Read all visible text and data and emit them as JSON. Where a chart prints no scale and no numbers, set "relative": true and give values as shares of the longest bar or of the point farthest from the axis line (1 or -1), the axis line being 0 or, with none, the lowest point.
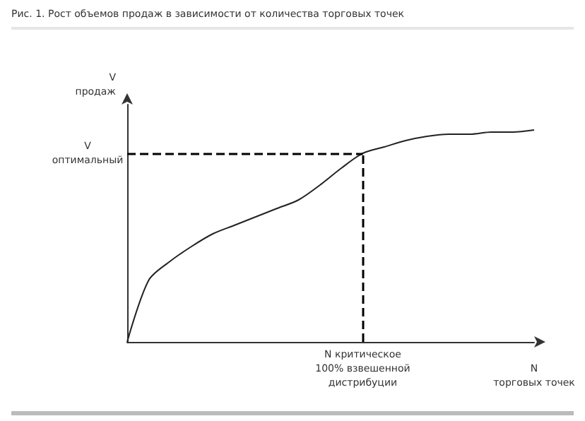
{
  "chart_data": {
    "type": "line",
    "title": "Рис. 1. Рост объемов продаж в зависимости от количества торговых точек",
    "xlabel": "N\nторговых точек",
    "ylabel": "V\nпродаж",
    "relative": true,
    "categories": [
      null,
      null,
      null,
      null,
      null,
      null,
      null,
      null,
      null,
      null,
      null,
      null,
      null,
      null,
      null,
      null,
      null,
      null,
      null,
      null
    ],
    "series": [
      {
        "color": "#222222",
        "values": [
          0,
          0.29,
          0.38,
          0.45,
          0.51,
          0.55,
          0.59,
          0.63,
          0.67,
          0.74,
          0.82,
          0.89,
          0.92,
          0.95,
          0.97,
          0.98,
          0.98,
          0.99,
          0.99,
          1
        ]
      }
    ],
    "ref_lines": [
      {
        "axis": "y",
        "value": 0.89,
        "label": "V\nоптимальный",
        "line_style": "dashed",
        "color": "#000000"
      }
    ],
    "annotations": [
      "N критическое\n100% взвешенной\nдистрибуции"
    ],
    "grid": false,
    "marker": "none",
    "line_style": "solid"
  }
}
